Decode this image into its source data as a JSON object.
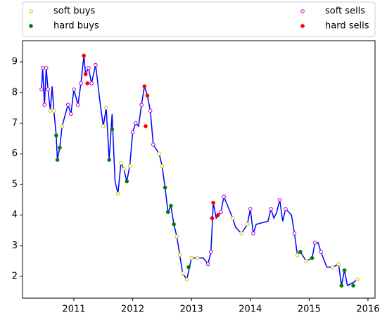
{
  "chart_data": {
    "type": "line",
    "line": {
      "color": "#0000ff",
      "x": [
        2010.45,
        2010.47,
        2010.5,
        2010.53,
        2010.56,
        2010.6,
        2010.63,
        2010.66,
        2010.7,
        2010.72,
        2010.76,
        2010.8,
        2010.9,
        2010.95,
        2011.0,
        2011.07,
        2011.12,
        2011.17,
        2011.2,
        2011.25,
        2011.3,
        2011.37,
        2011.45,
        2011.5,
        2011.55,
        2011.6,
        2011.65,
        2011.7,
        2011.75,
        2011.8,
        2011.85,
        2011.9,
        2011.95,
        2012.0,
        2012.05,
        2012.1,
        2012.15,
        2012.2,
        2012.25,
        2012.3,
        2012.35,
        2012.45,
        2012.5,
        2012.55,
        2012.6,
        2012.65,
        2012.7,
        2012.75,
        2012.8,
        2012.85,
        2012.92,
        2013.0,
        2013.1,
        2013.2,
        2013.28,
        2013.33,
        2013.37,
        2013.42,
        2013.5,
        2013.55,
        2013.7,
        2013.75,
        2013.85,
        2013.95,
        2014.0,
        2014.05,
        2014.1,
        2014.3,
        2014.35,
        2014.4,
        2014.45,
        2014.5,
        2014.55,
        2014.6,
        2014.7,
        2014.75,
        2014.8,
        2014.85,
        2014.95,
        2015.05,
        2015.1,
        2015.15,
        2015.2,
        2015.3,
        2015.4,
        2015.5,
        2015.55,
        2015.6,
        2015.65,
        2015.75,
        2015.82
      ],
      "values": [
        8.1,
        8.8,
        7.6,
        8.8,
        8.1,
        7.4,
        8.2,
        7.4,
        6.6,
        5.8,
        6.2,
        6.9,
        7.6,
        7.3,
        8.1,
        7.6,
        8.3,
        9.2,
        8.6,
        8.8,
        8.3,
        8.9,
        7.6,
        6.9,
        7.5,
        5.8,
        7.3,
        5.1,
        4.7,
        5.7,
        5.5,
        5.1,
        5.6,
        6.7,
        7.0,
        6.9,
        7.6,
        8.2,
        7.9,
        7.4,
        6.3,
        6.0,
        5.6,
        4.9,
        4.1,
        4.3,
        3.7,
        3.3,
        2.7,
        2.1,
        1.9,
        2.6,
        2.6,
        2.6,
        2.4,
        2.8,
        4.4,
        3.9,
        4.1,
        4.6,
        3.9,
        3.6,
        3.4,
        3.7,
        4.2,
        3.4,
        3.7,
        3.8,
        4.2,
        3.9,
        4.1,
        4.5,
        3.8,
        4.2,
        4.0,
        3.4,
        2.7,
        2.8,
        2.5,
        2.6,
        3.1,
        3.1,
        2.8,
        2.3,
        2.3,
        2.4,
        1.7,
        2.2,
        1.7,
        1.8,
        1.9
      ]
    },
    "series": [
      {
        "name": "soft buys",
        "color": "#c8c800",
        "filled": false,
        "x": [
          2010.6,
          2010.66,
          2010.8,
          2011.5,
          2011.55,
          2011.75,
          2011.8,
          2011.85,
          2011.95,
          2012.45,
          2012.5,
          2012.75,
          2012.8,
          2012.85,
          2012.92,
          2013.0,
          2013.1,
          2013.7,
          2013.85,
          2013.95,
          2014.8,
          2014.95,
          2015.4,
          2015.5,
          2015.82
        ],
        "values": [
          7.4,
          7.4,
          6.9,
          6.9,
          7.5,
          4.7,
          5.7,
          5.5,
          5.6,
          6.0,
          5.6,
          3.3,
          2.7,
          2.1,
          1.9,
          2.6,
          2.6,
          3.9,
          3.4,
          3.7,
          2.7,
          2.5,
          2.3,
          2.4,
          1.9
        ]
      },
      {
        "name": "hard buys",
        "color": "#008000",
        "filled": true,
        "x": [
          2010.7,
          2010.72,
          2010.76,
          2011.6,
          2011.65,
          2011.9,
          2012.55,
          2012.6,
          2012.65,
          2012.7,
          2012.95,
          2014.85,
          2015.05,
          2015.55,
          2015.6,
          2015.75
        ],
        "values": [
          6.6,
          5.8,
          6.2,
          5.8,
          6.8,
          5.1,
          4.9,
          4.1,
          4.3,
          3.7,
          2.3,
          2.8,
          2.6,
          1.7,
          2.2,
          1.7
        ]
      },
      {
        "name": "soft sells",
        "color": "#bf00bf",
        "filled": false,
        "x": [
          2010.45,
          2010.47,
          2010.5,
          2010.53,
          2010.56,
          2010.9,
          2010.95,
          2011.0,
          2011.07,
          2011.12,
          2011.25,
          2011.3,
          2011.37,
          2012.0,
          2012.05,
          2012.15,
          2012.3,
          2012.35,
          2013.28,
          2013.33,
          2013.5,
          2013.55,
          2014.0,
          2014.05,
          2014.35,
          2014.5,
          2014.6,
          2014.75,
          2015.1,
          2015.2
        ],
        "values": [
          8.1,
          8.8,
          7.6,
          8.8,
          8.1,
          7.6,
          7.3,
          8.1,
          7.6,
          8.3,
          8.8,
          8.3,
          8.9,
          6.7,
          7.0,
          7.6,
          7.4,
          6.3,
          2.4,
          2.8,
          4.1,
          4.6,
          4.2,
          3.4,
          4.2,
          4.5,
          4.2,
          3.4,
          3.1,
          2.8
        ]
      },
      {
        "name": "hard sells",
        "color": "#ff0000",
        "filled": true,
        "x": [
          2011.17,
          2011.2,
          2011.23,
          2012.2,
          2012.22,
          2012.25,
          2013.35,
          2013.37,
          2013.45
        ],
        "values": [
          9.2,
          8.6,
          8.3,
          8.2,
          6.9,
          7.9,
          3.9,
          4.4,
          4.0
        ]
      }
    ],
    "xlim": [
      2010.127,
      2016.12
    ],
    "xticks": [
      2011,
      2012,
      2013,
      2014,
      2015,
      2016
    ],
    "ylim": [
      1.29,
      9.69
    ],
    "yticks": [
      2,
      3,
      4,
      5,
      6,
      7,
      8,
      9
    ],
    "legend": "top"
  }
}
